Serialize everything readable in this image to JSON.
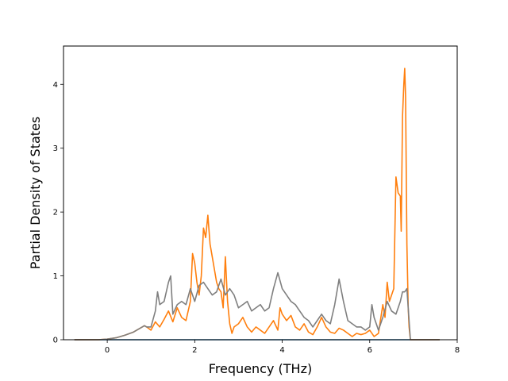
{
  "chart_data": {
    "type": "line",
    "title": "",
    "xlabel": "Frequency (THz)",
    "ylabel": "Partial Density of States",
    "xlim": [
      -1.0,
      8.0
    ],
    "ylim": [
      0,
      4.6
    ],
    "xticks": [
      0,
      2,
      4,
      6,
      8
    ],
    "xtick_labels": [
      "0",
      "2",
      "4",
      "6",
      "8"
    ],
    "yticks": [
      0,
      1,
      2,
      3,
      4
    ],
    "ytick_labels": [
      "0",
      "1",
      "2",
      "3",
      "4"
    ],
    "grid": false,
    "legend": "none",
    "series": [
      {
        "color": "#1f77b4",
        "x": [
          -0.75,
          0.0,
          6.7,
          6.75,
          6.8,
          6.85,
          6.9,
          6.93,
          7.6
        ],
        "y": [
          0,
          0,
          0,
          0,
          0,
          0,
          0,
          0,
          0
        ]
      },
      {
        "color": "#ff7f0e",
        "x": [
          -0.75,
          -0.2,
          0.0,
          0.2,
          0.4,
          0.6,
          0.8,
          0.85,
          0.9,
          1.0,
          1.1,
          1.2,
          1.3,
          1.4,
          1.5,
          1.6,
          1.7,
          1.8,
          1.9,
          1.95,
          2.0,
          2.05,
          2.1,
          2.15,
          2.2,
          2.25,
          2.3,
          2.35,
          2.4,
          2.45,
          2.5,
          2.55,
          2.6,
          2.65,
          2.7,
          2.75,
          2.8,
          2.85,
          2.9,
          3.0,
          3.1,
          3.2,
          3.3,
          3.4,
          3.5,
          3.6,
          3.7,
          3.8,
          3.9,
          3.95,
          4.0,
          4.1,
          4.2,
          4.3,
          4.4,
          4.5,
          4.6,
          4.7,
          4.8,
          4.9,
          5.0,
          5.1,
          5.2,
          5.3,
          5.4,
          5.5,
          5.6,
          5.7,
          5.8,
          5.9,
          6.0,
          6.1,
          6.2,
          6.3,
          6.35,
          6.4,
          6.45,
          6.5,
          6.55,
          6.6,
          6.65,
          6.7,
          6.72,
          6.75,
          6.78,
          6.8,
          6.82,
          6.85,
          6.88,
          6.9,
          6.93,
          7.0,
          7.6
        ],
        "y": [
          0,
          0,
          0.01,
          0.03,
          0.07,
          0.12,
          0.2,
          0.22,
          0.2,
          0.15,
          0.28,
          0.2,
          0.32,
          0.45,
          0.28,
          0.5,
          0.35,
          0.3,
          0.6,
          1.35,
          1.2,
          0.9,
          0.7,
          1.0,
          1.75,
          1.6,
          1.95,
          1.5,
          1.3,
          1.1,
          0.9,
          0.8,
          0.75,
          0.5,
          1.3,
          0.6,
          0.25,
          0.1,
          0.2,
          0.25,
          0.35,
          0.2,
          0.12,
          0.2,
          0.15,
          0.1,
          0.2,
          0.3,
          0.15,
          0.5,
          0.4,
          0.3,
          0.38,
          0.2,
          0.15,
          0.25,
          0.12,
          0.08,
          0.2,
          0.35,
          0.2,
          0.12,
          0.1,
          0.18,
          0.15,
          0.1,
          0.05,
          0.1,
          0.08,
          0.1,
          0.15,
          0.05,
          0.1,
          0.55,
          0.35,
          0.9,
          0.6,
          0.7,
          0.8,
          2.55,
          2.3,
          2.25,
          1.7,
          3.5,
          4.0,
          4.25,
          3.8,
          1.5,
          0.5,
          0.2,
          0,
          0,
          0
        ]
      },
      {
        "color": "#7f7f7f",
        "x": [
          -0.75,
          -0.2,
          0.0,
          0.2,
          0.4,
          0.6,
          0.8,
          0.85,
          0.9,
          1.0,
          1.1,
          1.15,
          1.2,
          1.3,
          1.4,
          1.45,
          1.5,
          1.6,
          1.7,
          1.8,
          1.9,
          2.0,
          2.1,
          2.2,
          2.3,
          2.4,
          2.5,
          2.6,
          2.7,
          2.8,
          2.9,
          3.0,
          3.1,
          3.2,
          3.3,
          3.4,
          3.5,
          3.6,
          3.7,
          3.8,
          3.9,
          4.0,
          4.1,
          4.2,
          4.3,
          4.4,
          4.5,
          4.6,
          4.7,
          4.8,
          4.9,
          5.0,
          5.1,
          5.2,
          5.3,
          5.4,
          5.5,
          5.6,
          5.7,
          5.8,
          5.9,
          6.0,
          6.05,
          6.1,
          6.2,
          6.3,
          6.4,
          6.5,
          6.6,
          6.7,
          6.75,
          6.8,
          6.85,
          6.9,
          6.93,
          7.0,
          7.6
        ],
        "y": [
          0,
          0,
          0.01,
          0.03,
          0.07,
          0.12,
          0.2,
          0.22,
          0.2,
          0.2,
          0.45,
          0.75,
          0.55,
          0.6,
          0.9,
          1.0,
          0.4,
          0.55,
          0.6,
          0.55,
          0.8,
          0.6,
          0.85,
          0.9,
          0.8,
          0.7,
          0.75,
          0.95,
          0.7,
          0.8,
          0.7,
          0.5,
          0.55,
          0.6,
          0.45,
          0.5,
          0.55,
          0.45,
          0.5,
          0.8,
          1.05,
          0.8,
          0.7,
          0.6,
          0.55,
          0.45,
          0.35,
          0.3,
          0.2,
          0.3,
          0.4,
          0.3,
          0.25,
          0.55,
          0.95,
          0.6,
          0.3,
          0.25,
          0.2,
          0.2,
          0.15,
          0.2,
          0.55,
          0.35,
          0.15,
          0.35,
          0.6,
          0.45,
          0.4,
          0.6,
          0.75,
          0.75,
          0.8,
          0.3,
          0,
          0,
          0
        ]
      }
    ]
  }
}
